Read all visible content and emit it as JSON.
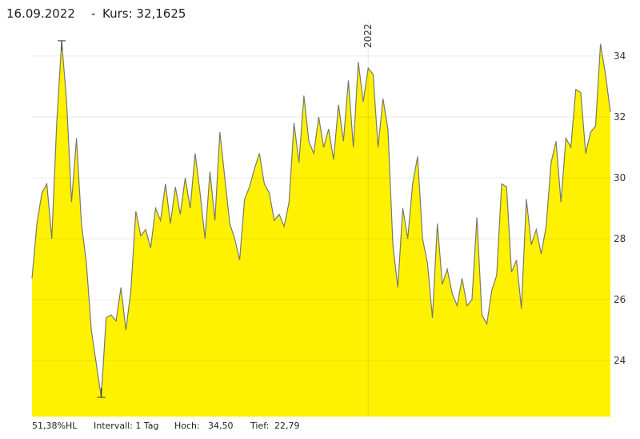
{
  "chart_data": {
    "type": "area",
    "header": {
      "date": "16.09.2022",
      "price": "Kurs: 32,1625"
    },
    "footer": {
      "range": "51,38%HL",
      "interval": "Intervall: 1 Tag",
      "high_label": "Hoch:",
      "high_value": "34,50",
      "low_label": "Tief:",
      "low_value": "22,79"
    },
    "color": "#fff200",
    "line_color": "#7a7a6a",
    "grid": true,
    "ylim": [
      22.16,
      35.05
    ],
    "yticks": [
      24,
      26,
      28,
      30,
      32,
      34
    ],
    "categories": [
      null,
      null,
      null,
      null,
      null,
      null,
      null,
      null,
      null,
      null,
      null,
      null,
      null,
      null,
      null,
      null,
      null,
      null,
      null,
      null,
      null,
      null,
      null,
      null,
      null,
      null,
      null,
      null,
      null,
      null,
      null,
      null,
      null,
      null,
      null,
      null,
      null,
      null,
      null,
      null,
      null,
      null,
      null,
      null,
      null,
      null,
      null,
      null,
      null,
      null,
      null,
      null,
      null,
      null,
      null,
      null,
      null,
      null,
      null,
      null,
      null,
      null,
      null,
      null,
      null,
      null,
      null,
      null,
      "2022",
      null,
      null,
      null,
      null,
      null,
      null,
      null,
      null,
      null,
      null,
      null,
      null,
      null,
      null,
      null,
      null,
      null,
      null,
      null,
      null,
      null,
      null,
      null,
      null,
      null,
      null,
      null,
      null,
      null,
      null,
      null,
      null,
      null,
      null,
      null,
      null,
      null,
      null,
      null,
      null,
      null,
      null,
      null,
      null,
      null,
      null,
      null,
      null,
      null
    ],
    "values": [
      26.7,
      28.5,
      29.5,
      29.8,
      28.0,
      31.8,
      34.5,
      32.5,
      29.2,
      31.3,
      28.5,
      27.2,
      25.0,
      23.9,
      22.79,
      25.4,
      25.5,
      25.3,
      26.4,
      25.0,
      26.3,
      28.9,
      28.1,
      28.3,
      27.7,
      29.0,
      28.6,
      29.8,
      28.5,
      29.7,
      28.8,
      30.0,
      29.0,
      30.8,
      29.5,
      28.0,
      30.2,
      28.6,
      31.5,
      30.0,
      28.5,
      28.0,
      27.3,
      29.3,
      29.7,
      30.3,
      30.8,
      29.8,
      29.5,
      28.6,
      28.8,
      28.4,
      29.2,
      31.8,
      30.5,
      32.7,
      31.2,
      30.8,
      32.0,
      31.0,
      31.6,
      30.6,
      32.4,
      31.2,
      33.2,
      31.0,
      33.8,
      32.5,
      33.6,
      33.4,
      31.0,
      32.6,
      31.6,
      27.8,
      26.4,
      29.0,
      28.0,
      29.8,
      30.7,
      28.0,
      27.2,
      25.4,
      28.5,
      26.5,
      27.0,
      26.2,
      25.8,
      26.7,
      25.8,
      26.0,
      28.7,
      25.5,
      25.2,
      26.3,
      26.8,
      29.8,
      29.7,
      26.9,
      27.3,
      25.7,
      29.3,
      27.8,
      28.3,
      27.5,
      28.4,
      30.5,
      31.2,
      29.2,
      31.3,
      31.0,
      32.9,
      32.8,
      30.8,
      31.5,
      31.7,
      34.4,
      33.4,
      32.1625
    ]
  }
}
